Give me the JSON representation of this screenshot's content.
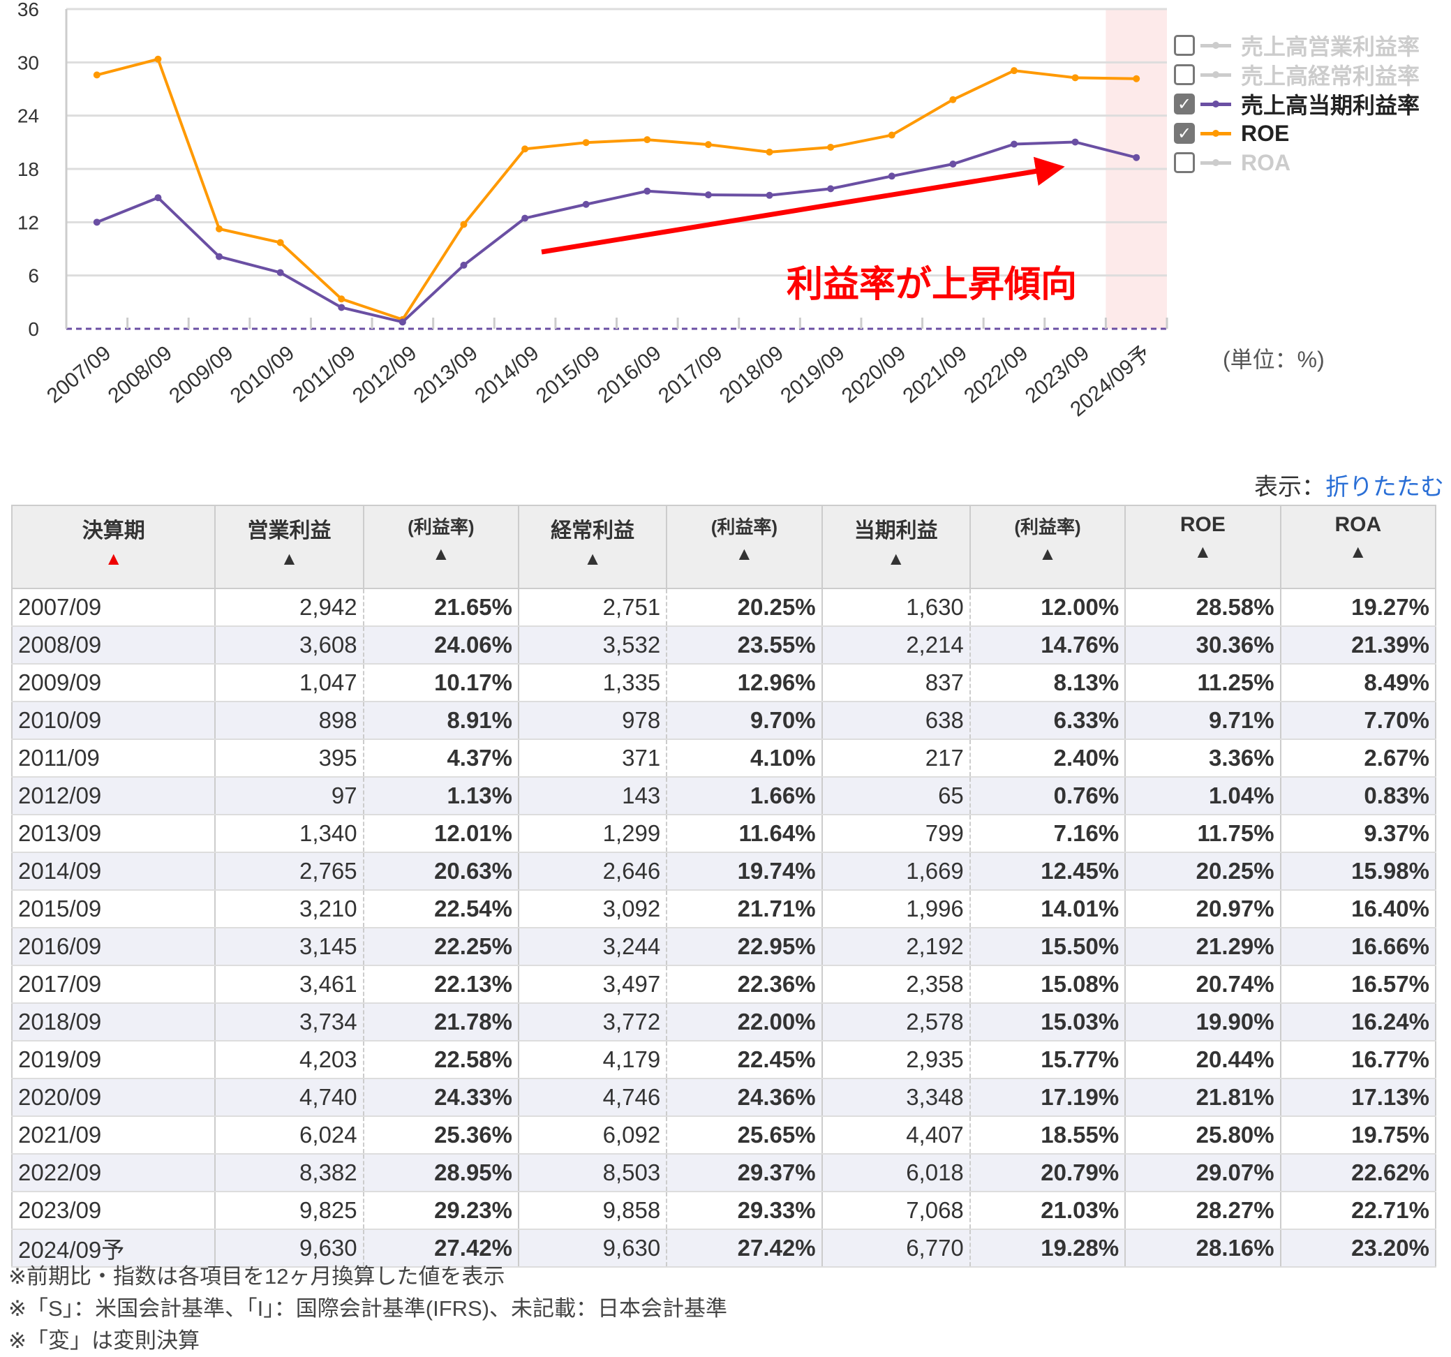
{
  "chart_data": {
    "type": "line",
    "categories": [
      "2007/09",
      "2008/09",
      "2009/09",
      "2010/09",
      "2011/09",
      "2012/09",
      "2013/09",
      "2014/09",
      "2015/09",
      "2016/09",
      "2017/09",
      "2018/09",
      "2019/09",
      "2020/09",
      "2021/09",
      "2022/09",
      "2023/09",
      "2024/09予"
    ],
    "series": [
      {
        "name": "売上高当期利益率",
        "color": "#6a4fa3",
        "values": [
          12.0,
          14.76,
          8.13,
          6.33,
          2.4,
          0.76,
          7.16,
          12.45,
          14.01,
          15.5,
          15.08,
          15.03,
          15.77,
          17.19,
          18.55,
          20.79,
          21.03,
          19.28
        ]
      },
      {
        "name": "ROE",
        "color": "#ff9900",
        "values": [
          28.58,
          30.36,
          11.25,
          9.71,
          3.36,
          1.04,
          11.75,
          20.25,
          20.97,
          21.29,
          20.74,
          19.9,
          20.44,
          21.81,
          25.8,
          29.07,
          28.27,
          28.16
        ]
      }
    ],
    "yticks": [
      "0",
      "6",
      "12",
      "18",
      "24",
      "30",
      "36"
    ],
    "ylim": [
      0,
      36
    ],
    "forecast_highlight": "2024/09予",
    "annotation": "利益率が上昇傾向",
    "annotation_color": "#ff0000",
    "unit": "(単位：%)"
  },
  "legend": [
    {
      "label": "売上高営業利益率",
      "checked": false,
      "color": "#cccccc"
    },
    {
      "label": "売上高経常利益率",
      "checked": false,
      "color": "#cccccc"
    },
    {
      "label": "売上高当期利益率",
      "checked": true,
      "color": "#6a4fa3"
    },
    {
      "label": "ROE",
      "checked": true,
      "color": "#ff9900"
    },
    {
      "label": "ROA",
      "checked": false,
      "color": "#cccccc"
    }
  ],
  "toggle": {
    "prefix": "表示：",
    "link": "折りたたむ"
  },
  "table": {
    "headers": [
      {
        "label": "決算期"
      },
      {
        "label": "営業利益"
      },
      {
        "label": "(利益率)"
      },
      {
        "label": "経常利益"
      },
      {
        "label": "(利益率)"
      },
      {
        "label": "当期利益"
      },
      {
        "label": "(利益率)"
      },
      {
        "label": "ROE"
      },
      {
        "label": "ROA"
      }
    ],
    "sort_icon": "▲",
    "rows": [
      [
        "2007/09",
        "2,942",
        "21.65%",
        "2,751",
        "20.25%",
        "1,630",
        "12.00%",
        "28.58%",
        "19.27%"
      ],
      [
        "2008/09",
        "3,608",
        "24.06%",
        "3,532",
        "23.55%",
        "2,214",
        "14.76%",
        "30.36%",
        "21.39%"
      ],
      [
        "2009/09",
        "1,047",
        "10.17%",
        "1,335",
        "12.96%",
        "837",
        "8.13%",
        "11.25%",
        "8.49%"
      ],
      [
        "2010/09",
        "898",
        "8.91%",
        "978",
        "9.70%",
        "638",
        "6.33%",
        "9.71%",
        "7.70%"
      ],
      [
        "2011/09",
        "395",
        "4.37%",
        "371",
        "4.10%",
        "217",
        "2.40%",
        "3.36%",
        "2.67%"
      ],
      [
        "2012/09",
        "97",
        "1.13%",
        "143",
        "1.66%",
        "65",
        "0.76%",
        "1.04%",
        "0.83%"
      ],
      [
        "2013/09",
        "1,340",
        "12.01%",
        "1,299",
        "11.64%",
        "799",
        "7.16%",
        "11.75%",
        "9.37%"
      ],
      [
        "2014/09",
        "2,765",
        "20.63%",
        "2,646",
        "19.74%",
        "1,669",
        "12.45%",
        "20.25%",
        "15.98%"
      ],
      [
        "2015/09",
        "3,210",
        "22.54%",
        "3,092",
        "21.71%",
        "1,996",
        "14.01%",
        "20.97%",
        "16.40%"
      ],
      [
        "2016/09",
        "3,145",
        "22.25%",
        "3,244",
        "22.95%",
        "2,192",
        "15.50%",
        "21.29%",
        "16.66%"
      ],
      [
        "2017/09",
        "3,461",
        "22.13%",
        "3,497",
        "22.36%",
        "2,358",
        "15.08%",
        "20.74%",
        "16.57%"
      ],
      [
        "2018/09",
        "3,734",
        "21.78%",
        "3,772",
        "22.00%",
        "2,578",
        "15.03%",
        "19.90%",
        "16.24%"
      ],
      [
        "2019/09",
        "4,203",
        "22.58%",
        "4,179",
        "22.45%",
        "2,935",
        "15.77%",
        "20.44%",
        "16.77%"
      ],
      [
        "2020/09",
        "4,740",
        "24.33%",
        "4,746",
        "24.36%",
        "3,348",
        "17.19%",
        "21.81%",
        "17.13%"
      ],
      [
        "2021/09",
        "6,024",
        "25.36%",
        "6,092",
        "25.65%",
        "4,407",
        "18.55%",
        "25.80%",
        "19.75%"
      ],
      [
        "2022/09",
        "8,382",
        "28.95%",
        "8,503",
        "29.37%",
        "6,018",
        "20.79%",
        "29.07%",
        "22.62%"
      ],
      [
        "2023/09",
        "9,825",
        "29.23%",
        "9,858",
        "29.33%",
        "7,068",
        "21.03%",
        "28.27%",
        "22.71%"
      ],
      [
        "2024/09予",
        "9,630",
        "27.42%",
        "9,630",
        "27.42%",
        "6,770",
        "19.28%",
        "28.16%",
        "23.20%"
      ]
    ]
  },
  "notes": [
    "※前期比・指数は各項目を12ヶ月換算した値を表示",
    "※「S」：米国会計基準、「I」：国際会計基準(IFRS)、未記載：日本会計基準",
    "※「変」は変則決算"
  ]
}
